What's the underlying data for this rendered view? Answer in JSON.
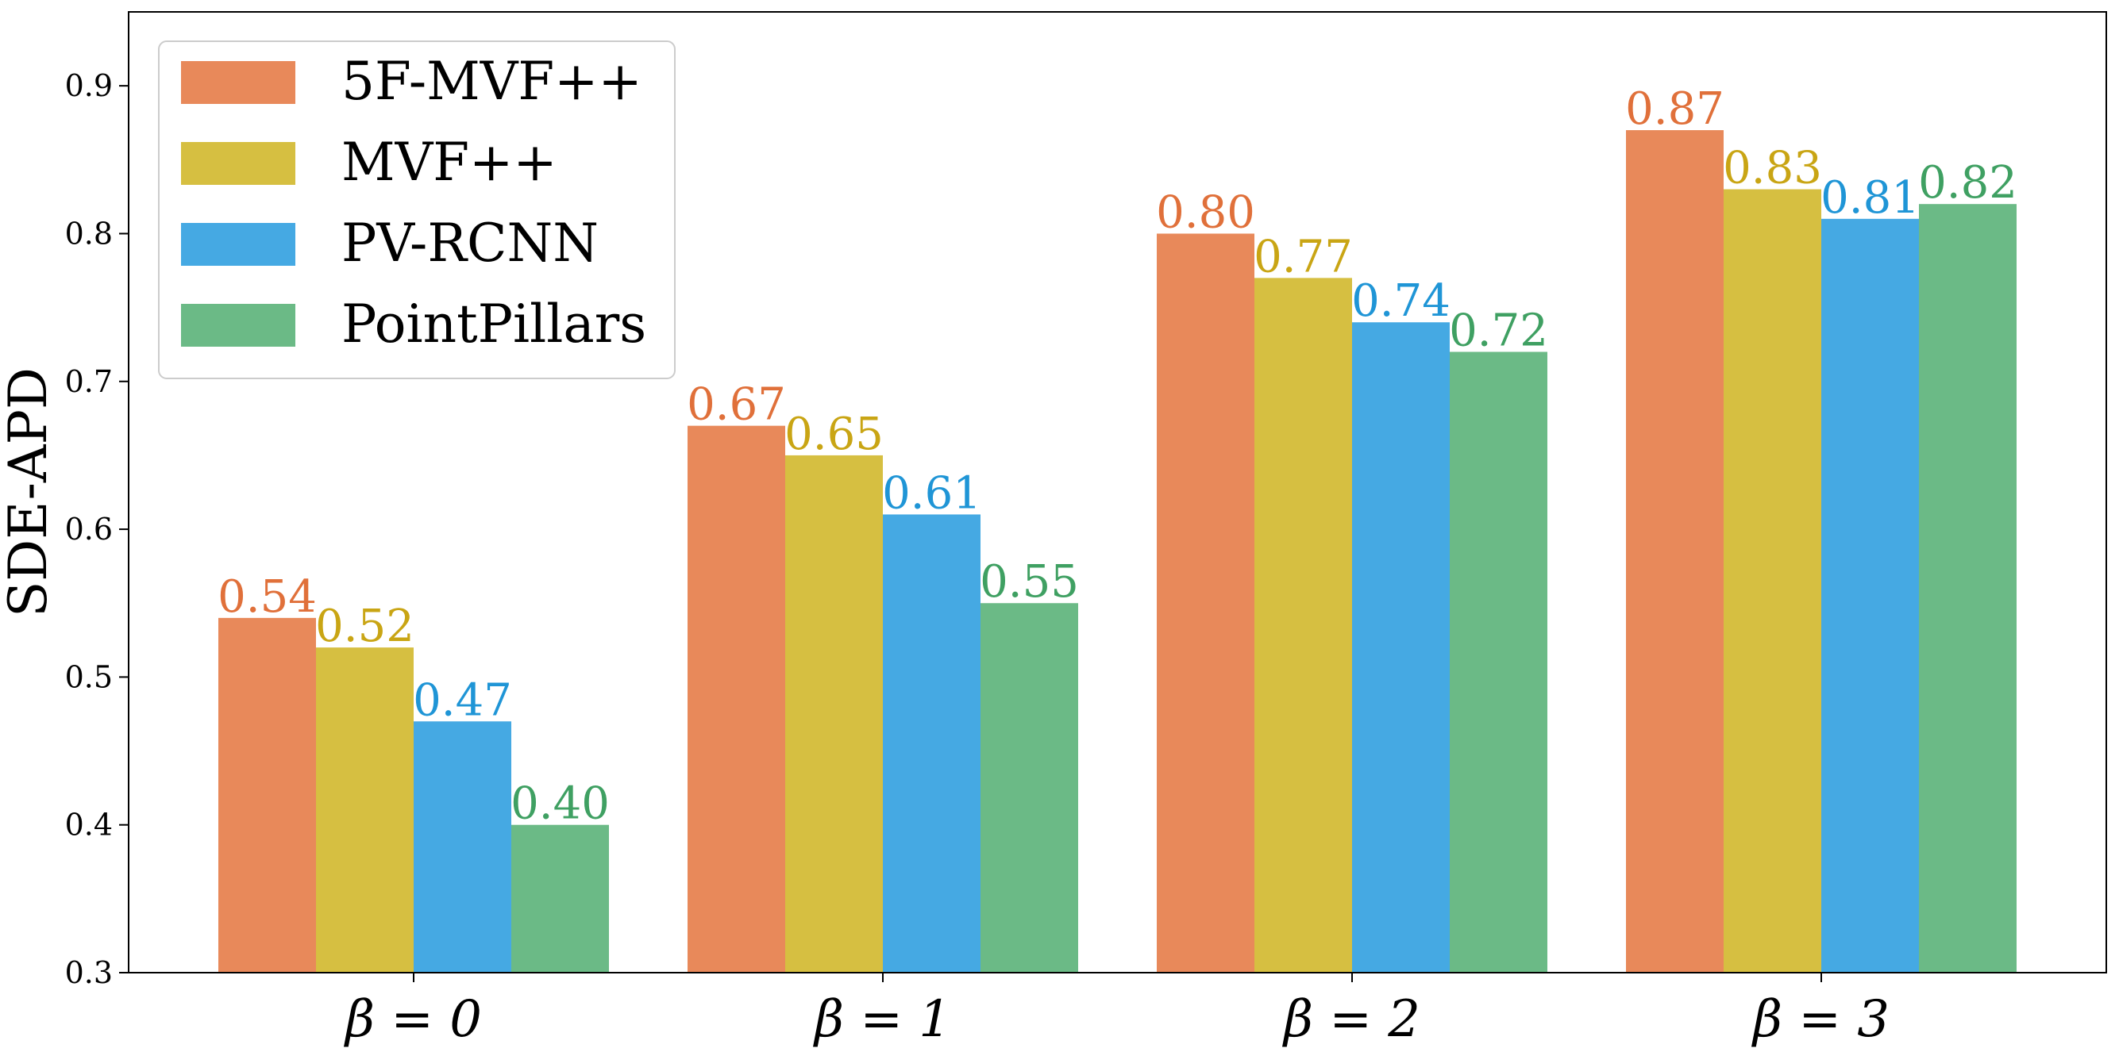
{
  "chart_data": {
    "type": "bar",
    "categories": [
      "β = 0",
      "β = 1",
      "β = 2",
      "β = 3"
    ],
    "series": [
      {
        "name": "5F-MVF++",
        "color": "#E8895A",
        "label_color": "#E0703A",
        "values": [
          0.54,
          0.67,
          0.8,
          0.87
        ],
        "labels": [
          "0.54",
          "0.67",
          "0.80",
          "0.87"
        ]
      },
      {
        "name": "MVF++",
        "color": "#D6BF41",
        "label_color": "#C9A514",
        "values": [
          0.52,
          0.65,
          0.77,
          0.83
        ],
        "labels": [
          "0.52",
          "0.65",
          "0.77",
          "0.83"
        ]
      },
      {
        "name": "PV-RCNN",
        "color": "#45A9E3",
        "label_color": "#1F95D6",
        "values": [
          0.47,
          0.61,
          0.74,
          0.81
        ],
        "labels": [
          "0.47",
          "0.61",
          "0.74",
          "0.81"
        ]
      },
      {
        "name": "PointPillars",
        "color": "#6BBA86",
        "label_color": "#3FA062",
        "values": [
          0.4,
          0.55,
          0.72,
          0.82
        ],
        "labels": [
          "0.40",
          "0.55",
          "0.72",
          "0.82"
        ]
      }
    ],
    "title": "",
    "xlabel": "",
    "ylabel": "SDE-APD",
    "ylim": [
      0.3,
      0.95
    ],
    "yticks": [
      "0.3",
      "0.4",
      "0.5",
      "0.6",
      "0.7",
      "0.8",
      "0.9"
    ],
    "grid": false,
    "legend_position": "top-left"
  }
}
